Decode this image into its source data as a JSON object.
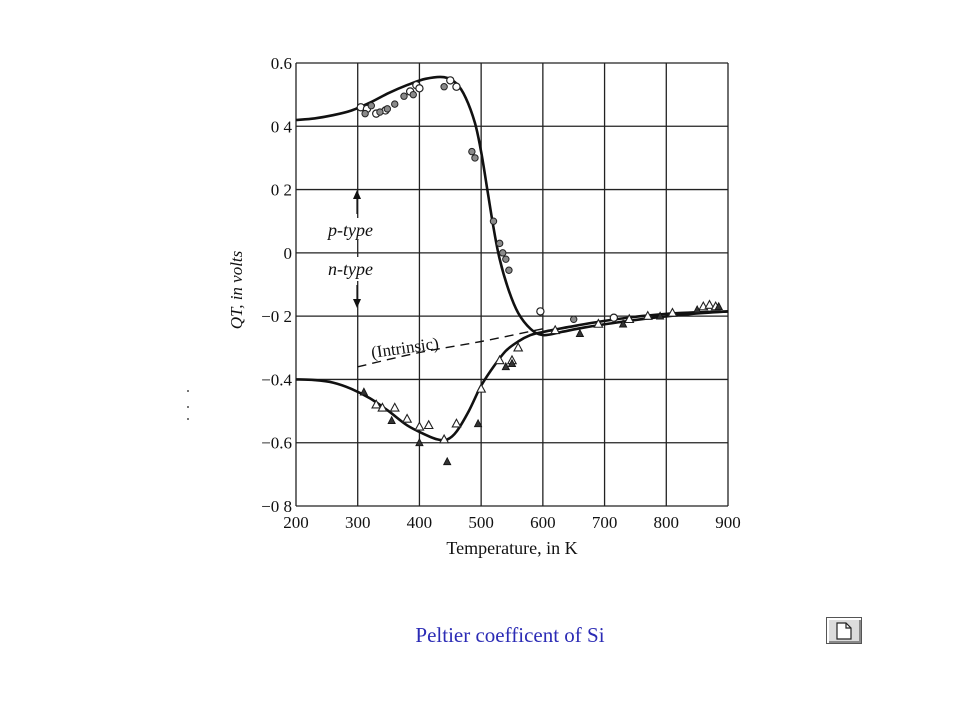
{
  "caption": "Peltier coefficent of Si",
  "icons": {
    "page_button": "document-page-icon"
  },
  "chart_data": {
    "type": "scatter",
    "title": "",
    "xlabel": "Temperature, in K",
    "ylabel": "QT, in volts",
    "xlim": [
      200,
      900
    ],
    "ylim": [
      -0.8,
      0.6
    ],
    "x_ticks": [
      200,
      300,
      400,
      500,
      600,
      700,
      800,
      900
    ],
    "x_tick_labels": [
      "200",
      "300",
      "400",
      "500",
      "600",
      "700",
      "800",
      "900"
    ],
    "y_ticks": [
      0.6,
      0.4,
      0.2,
      0,
      -0.2,
      -0.4,
      -0.6,
      -0.8
    ],
    "y_tick_labels": [
      "0.6",
      "0 4",
      "0 2",
      "0",
      "−0 2",
      "−0.4",
      "−0.6",
      "−0 8"
    ],
    "grid": true,
    "annotations": {
      "p_type": "p-type",
      "n_type": "n-type",
      "intrinsic": "(Intrinsic)"
    },
    "series": [
      {
        "kind": "curve",
        "style": "solid",
        "x": [
          200,
          230,
          260,
          290,
          320,
          350,
          380,
          410,
          440,
          460,
          475,
          490,
          500,
          510,
          520,
          530,
          545,
          560,
          580,
          600,
          630,
          670,
          720,
          780,
          840,
          900
        ],
        "y": [
          0.42,
          0.425,
          0.435,
          0.45,
          0.475,
          0.505,
          0.53,
          0.55,
          0.555,
          0.535,
          0.49,
          0.41,
          0.32,
          0.2,
          0.08,
          -0.02,
          -0.12,
          -0.19,
          -0.24,
          -0.26,
          -0.25,
          -0.235,
          -0.22,
          -0.205,
          -0.193,
          -0.185
        ]
      },
      {
        "kind": "curve",
        "style": "solid",
        "x": [
          200,
          230,
          260,
          290,
          320,
          350,
          380,
          410,
          430,
          445,
          460,
          480,
          500,
          520,
          540,
          560,
          580,
          600,
          640,
          700,
          760,
          820,
          900
        ],
        "y": [
          -0.4,
          -0.402,
          -0.41,
          -0.43,
          -0.46,
          -0.5,
          -0.545,
          -0.575,
          -0.59,
          -0.59,
          -0.565,
          -0.5,
          -0.42,
          -0.36,
          -0.31,
          -0.28,
          -0.26,
          -0.25,
          -0.235,
          -0.215,
          -0.2,
          -0.19,
          -0.185
        ]
      },
      {
        "kind": "curve",
        "style": "dashed",
        "x": [
          300,
          400,
          500,
          600
        ],
        "y": [
          -0.36,
          -0.315,
          -0.28,
          -0.24
        ]
      },
      {
        "kind": "points",
        "marker": "circle-open",
        "x": [
          305,
          315,
          330,
          345,
          385,
          395,
          400,
          450,
          460,
          596,
          715
        ],
        "y": [
          0.46,
          0.455,
          0.44,
          0.45,
          0.51,
          0.53,
          0.52,
          0.545,
          0.525,
          -0.185,
          -0.205
        ]
      },
      {
        "kind": "points",
        "marker": "circle-dot",
        "x": [
          312,
          322,
          336,
          348,
          360,
          375,
          390,
          440,
          485,
          490,
          520,
          530,
          535,
          540,
          545,
          650
        ],
        "y": [
          0.44,
          0.465,
          0.445,
          0.455,
          0.47,
          0.495,
          0.5,
          0.525,
          0.32,
          0.3,
          0.1,
          0.03,
          0.0,
          -0.02,
          -0.055,
          -0.21
        ]
      },
      {
        "kind": "points",
        "marker": "triangle-open",
        "x": [
          330,
          340,
          360,
          380,
          400,
          415,
          440,
          460,
          500,
          530,
          550,
          560,
          620,
          690,
          740,
          770,
          810,
          860,
          870,
          880
        ],
        "y": [
          -0.48,
          -0.49,
          -0.49,
          -0.525,
          -0.55,
          -0.545,
          -0.59,
          -0.54,
          -0.43,
          -0.34,
          -0.34,
          -0.3,
          -0.245,
          -0.225,
          -0.21,
          -0.2,
          -0.19,
          -0.17,
          -0.165,
          -0.17
        ]
      },
      {
        "kind": "points",
        "marker": "triangle-filled",
        "x": [
          310,
          355,
          400,
          445,
          495,
          540,
          550,
          660,
          730,
          790,
          850,
          885
        ],
        "y": [
          -0.44,
          -0.53,
          -0.6,
          -0.66,
          -0.54,
          -0.36,
          -0.35,
          -0.255,
          -0.225,
          -0.2,
          -0.18,
          -0.17
        ]
      }
    ]
  }
}
